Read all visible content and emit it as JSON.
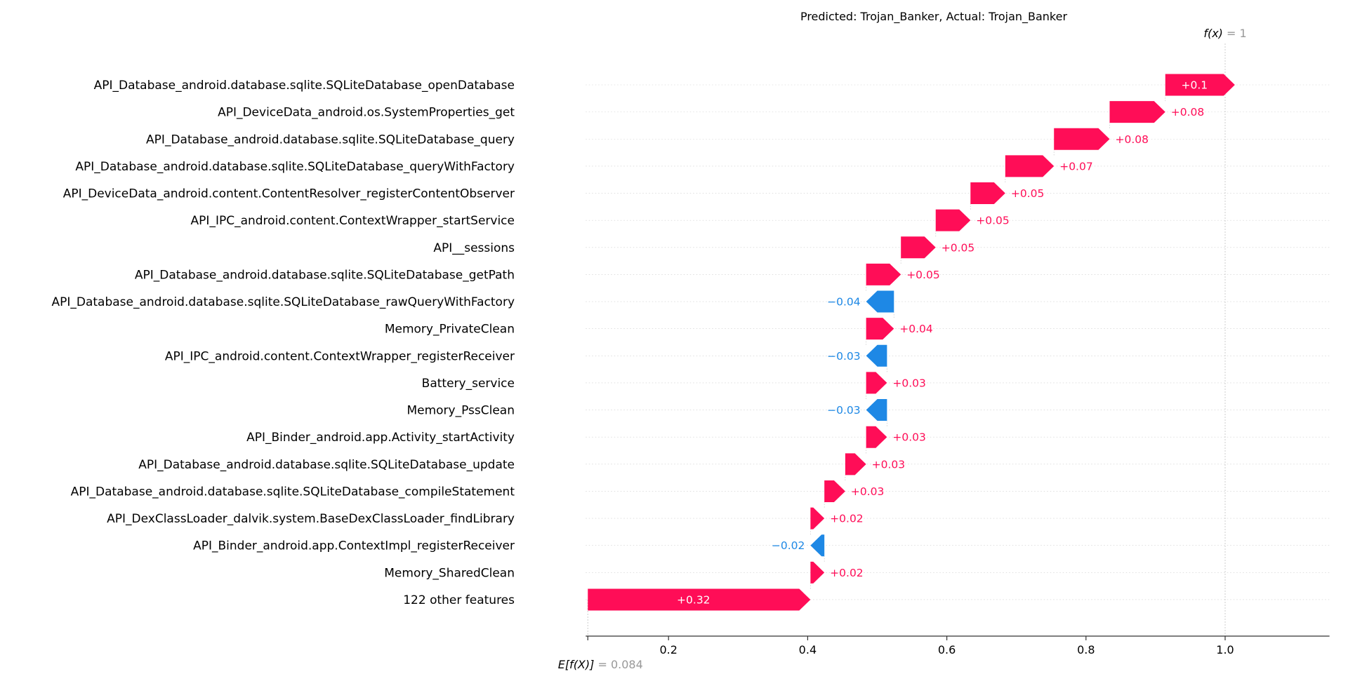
{
  "chart_data": {
    "type": "waterfall",
    "title": "Predicted: Trojan_Banker, Actual: Trojan_Banker",
    "base_value": 0.084,
    "base_label_expr": "E[f(X)]",
    "base_label_value": " = 0.084",
    "output_value": 1.0,
    "output_label_expr": "f(x)",
    "output_label_value": " = 1",
    "xlim": [
      0.084,
      1.15
    ],
    "xticks": [
      0.2,
      0.4,
      0.6,
      0.8,
      1.0
    ],
    "xtick_labels": [
      "0.2",
      "0.4",
      "0.6",
      "0.8",
      "1.0"
    ],
    "colors": {
      "positive": "#ff0d57",
      "negative": "#1e88e5",
      "axis": "#333333",
      "grid": "#cccccc",
      "faint": "#999999"
    },
    "features": [
      {
        "name": "API_Database_android.database.sqlite.SQLiteDatabase_openDatabase",
        "value": 0.1,
        "label": "+0.1"
      },
      {
        "name": "API_DeviceData_android.os.SystemProperties_get",
        "value": 0.08,
        "label": "+0.08"
      },
      {
        "name": "API_Database_android.database.sqlite.SQLiteDatabase_query",
        "value": 0.08,
        "label": "+0.08"
      },
      {
        "name": "API_Database_android.database.sqlite.SQLiteDatabase_queryWithFactory",
        "value": 0.07,
        "label": "+0.07"
      },
      {
        "name": "API_DeviceData_android.content.ContentResolver_registerContentObserver",
        "value": 0.05,
        "label": "+0.05"
      },
      {
        "name": "API_IPC_android.content.ContextWrapper_startService",
        "value": 0.05,
        "label": "+0.05"
      },
      {
        "name": "API__sessions",
        "value": 0.05,
        "label": "+0.05"
      },
      {
        "name": "API_Database_android.database.sqlite.SQLiteDatabase_getPath",
        "value": 0.05,
        "label": "+0.05"
      },
      {
        "name": "API_Database_android.database.sqlite.SQLiteDatabase_rawQueryWithFactory",
        "value": -0.04,
        "label": "−0.04"
      },
      {
        "name": "Memory_PrivateClean",
        "value": 0.04,
        "label": "+0.04"
      },
      {
        "name": "API_IPC_android.content.ContextWrapper_registerReceiver",
        "value": -0.03,
        "label": "−0.03"
      },
      {
        "name": "Battery_service",
        "value": 0.03,
        "label": "+0.03"
      },
      {
        "name": "Memory_PssClean",
        "value": -0.03,
        "label": "−0.03"
      },
      {
        "name": "API_Binder_android.app.Activity_startActivity",
        "value": 0.03,
        "label": "+0.03"
      },
      {
        "name": "API_Database_android.database.sqlite.SQLiteDatabase_update",
        "value": 0.03,
        "label": "+0.03"
      },
      {
        "name": "API_Database_android.database.sqlite.SQLiteDatabase_compileStatement",
        "value": 0.03,
        "label": "+0.03"
      },
      {
        "name": "API_DexClassLoader_dalvik.system.BaseDexClassLoader_findLibrary",
        "value": 0.02,
        "label": "+0.02"
      },
      {
        "name": "API_Binder_android.app.ContextImpl_registerReceiver",
        "value": -0.02,
        "label": "−0.02"
      },
      {
        "name": "Memory_SharedClean",
        "value": 0.02,
        "label": "+0.02"
      },
      {
        "name": "122 other features",
        "value": 0.32,
        "label": "+0.32"
      }
    ]
  }
}
